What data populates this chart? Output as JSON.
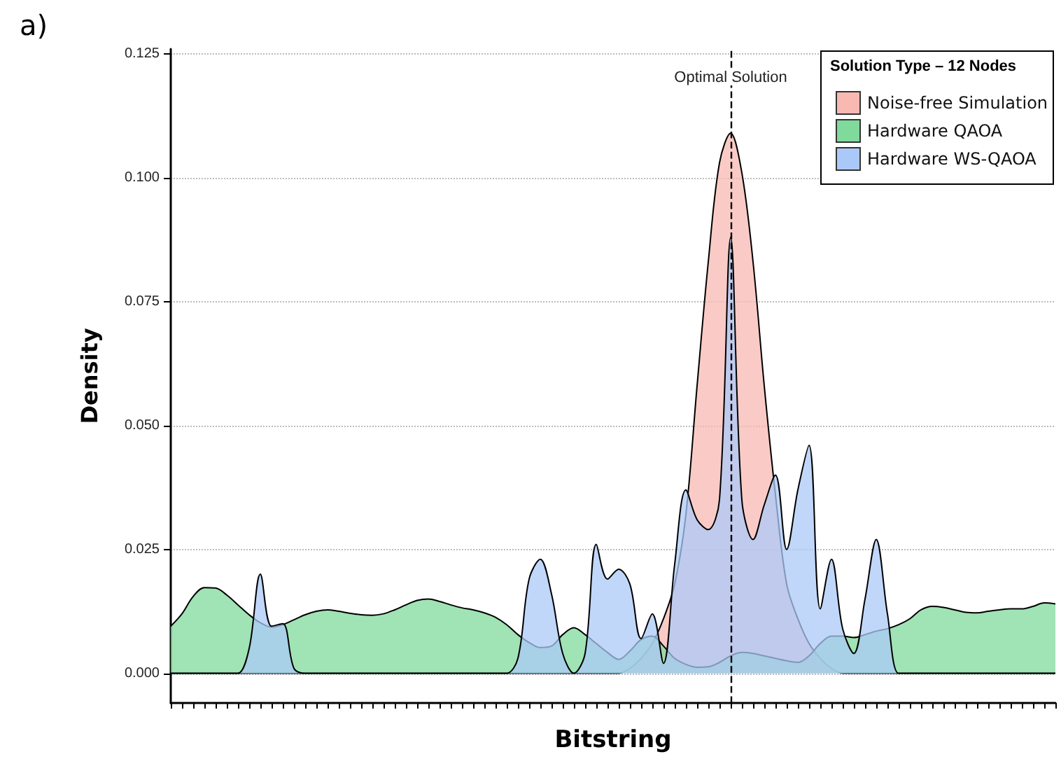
{
  "chart_data": {
    "type": "area",
    "xlabel": "Bitstring",
    "ylabel": "Density",
    "legend_title": "Solution Type – 12 Nodes",
    "annotations": [
      "a)",
      "Optimal Solution"
    ],
    "categories": [
      null,
      null,
      null,
      null,
      null,
      null,
      null,
      null,
      null,
      null,
      null,
      null,
      null,
      null,
      null,
      null,
      null,
      null,
      null,
      null,
      null,
      null,
      null,
      null,
      null,
      null,
      null,
      null,
      null,
      null,
      null,
      null,
      null,
      null,
      null,
      null,
      null,
      null,
      null,
      null,
      null,
      null,
      null,
      null,
      null,
      null,
      null,
      null,
      null,
      null,
      null,
      null,
      null,
      null,
      null,
      null,
      null,
      null,
      null,
      null,
      null,
      null,
      null,
      null,
      null,
      null,
      null,
      null,
      null,
      null,
      null,
      null,
      null,
      null,
      null,
      null,
      null,
      null,
      null,
      null
    ],
    "series": [
      {
        "name": "Noise-free Simulation",
        "color": "#f8b9b3",
        "values": [
          0,
          0,
          0,
          0,
          0,
          0,
          0,
          0,
          0,
          0,
          0,
          0,
          0,
          0,
          0,
          0,
          0,
          0,
          0,
          0,
          0,
          0,
          0,
          0,
          0,
          0,
          0,
          0,
          0,
          0,
          0,
          0,
          0,
          0,
          0,
          0,
          0,
          0,
          0,
          0,
          0,
          0.001,
          0.003,
          0.006,
          0.011,
          0.018,
          0.032,
          0.058,
          0.083,
          0.103,
          0.109,
          0.101,
          0.083,
          0.058,
          0.036,
          0.018,
          0.011,
          0.006,
          0.003,
          0.001,
          0,
          0,
          0,
          0,
          0,
          0,
          0,
          0,
          0,
          0,
          0,
          0,
          0,
          0,
          0,
          0,
          0,
          0,
          0,
          0
        ]
      },
      {
        "name": "Hardware QAOA",
        "color": "#80da9b",
        "values": [
          0.0095,
          0.012,
          0.0155,
          0.0173,
          0.0172,
          0.0158,
          0.0138,
          0.0118,
          0.0102,
          0.0093,
          0.0098,
          0.0108,
          0.0118,
          0.0125,
          0.0128,
          0.0125,
          0.0121,
          0.0118,
          0.0117,
          0.012,
          0.0128,
          0.0138,
          0.0147,
          0.015,
          0.0145,
          0.0138,
          0.0132,
          0.0128,
          0.0122,
          0.0113,
          0.0098,
          0.0078,
          0.0062,
          0.0052,
          0.0055,
          0.0078,
          0.0092,
          0.0078,
          0.006,
          0.0042,
          0.0028,
          0.0045,
          0.0068,
          0.0075,
          0.0055,
          0.003,
          0.0018,
          0.0012,
          0.0013,
          0.0022,
          0.0035,
          0.0042,
          0.004,
          0.0035,
          0.003,
          0.0025,
          0.0022,
          0.0035,
          0.006,
          0.0075,
          0.0075,
          0.0072,
          0.0078,
          0.0085,
          0.009,
          0.0098,
          0.011,
          0.0128,
          0.0135,
          0.0133,
          0.0128,
          0.0123,
          0.0122,
          0.0125,
          0.0128,
          0.013,
          0.013,
          0.0135,
          0.0142,
          0.014
        ]
      },
      {
        "name": "Hardware WS-QAOA",
        "color": "#abc9f8",
        "values": [
          0,
          0,
          0,
          0,
          0,
          0,
          0,
          0.005,
          0.02,
          0.0095,
          0.01,
          0.001,
          0,
          0,
          0,
          0,
          0,
          0,
          0,
          0,
          0,
          0,
          0,
          0,
          0,
          0,
          0,
          0,
          0,
          0,
          0,
          0.003,
          0.019,
          0.023,
          0.016,
          0.004,
          0,
          0.004,
          0.026,
          0.019,
          0.021,
          0.018,
          0.007,
          0.012,
          0.002,
          0.022,
          0.037,
          0.031,
          0.029,
          0.035,
          0.088,
          0.035,
          0.027,
          0.034,
          0.04,
          0.025,
          0.037,
          0.046,
          0.013,
          0.023,
          0.009,
          0.004,
          0.015,
          0.027,
          0.012,
          0,
          0,
          0,
          0,
          0,
          0,
          0,
          0,
          0,
          0,
          0,
          0,
          0,
          0,
          0
        ]
      }
    ],
    "ylim": [
      -0.006,
      0.126
    ],
    "yticks": [
      {
        "value": 0,
        "label": "0.000"
      },
      {
        "value": 0.025,
        "label": "0.025"
      },
      {
        "value": 0.05,
        "label": "0.050"
      },
      {
        "value": 0.075,
        "label": "0.075"
      },
      {
        "value": 0.1,
        "label": "0.100"
      },
      {
        "value": 0.125,
        "label": "0.125"
      }
    ],
    "grid": "y",
    "legend": "top right",
    "tick_labels": "y"
  }
}
